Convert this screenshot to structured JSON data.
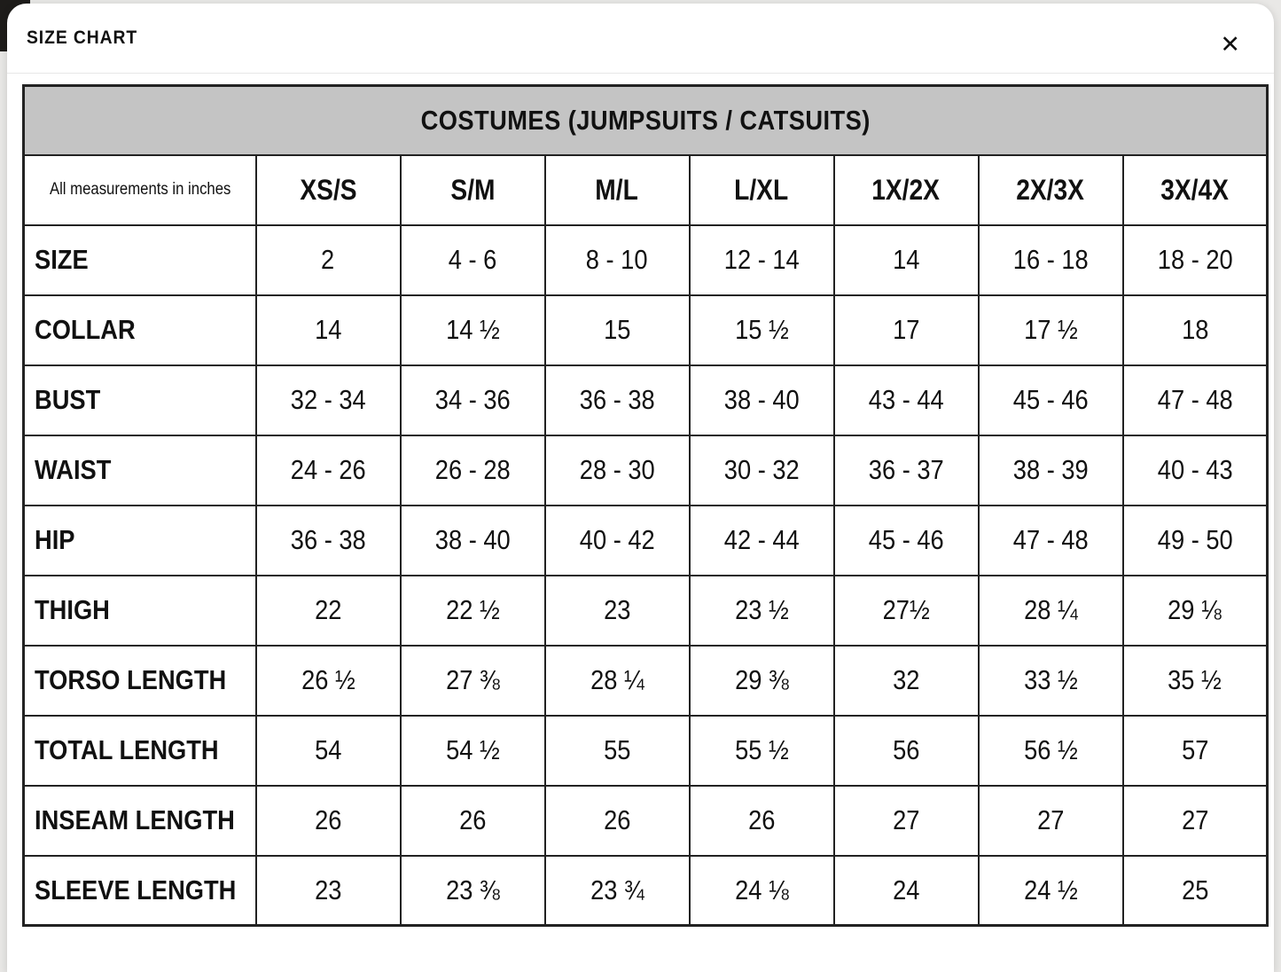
{
  "modal": {
    "title": "SIZE CHART",
    "close_icon": "✕"
  },
  "table": {
    "title": "COSTUMES (JUMPSUITS / CATSUITS)",
    "corner_note": "All measurements in inches",
    "columns": [
      "XS/S",
      "S/M",
      "M/L",
      "L/XL",
      "1X/2X",
      "2X/3X",
      "3X/4X"
    ],
    "rows": [
      {
        "label": "SIZE",
        "values": [
          "2",
          "4 - 6",
          "8 - 10",
          "12 - 14",
          "14",
          "16 - 18",
          "18 - 20"
        ]
      },
      {
        "label": "COLLAR",
        "values": [
          "14",
          "14 ½",
          "15",
          "15 ½",
          "17",
          "17 ½",
          "18"
        ]
      },
      {
        "label": "BUST",
        "values": [
          "32 - 34",
          "34 - 36",
          "36 - 38",
          "38 - 40",
          "43 - 44",
          "45 - 46",
          "47 - 48"
        ]
      },
      {
        "label": "WAIST",
        "values": [
          "24 - 26",
          "26 - 28",
          "28 - 30",
          "30 - 32",
          "36 - 37",
          "38 - 39",
          "40 - 43"
        ]
      },
      {
        "label": "HIP",
        "values": [
          "36 - 38",
          "38 - 40",
          "40 - 42",
          "42 - 44",
          "45 - 46",
          "47 - 48",
          "49 - 50"
        ]
      },
      {
        "label": "THIGH",
        "values": [
          "22",
          "22 ½",
          "23",
          "23 ½",
          "27½",
          "28 ¼",
          "29 ⅛"
        ]
      },
      {
        "label": "TORSO LENGTH",
        "values": [
          "26 ½",
          "27 ⅜",
          "28 ¼",
          "29 ⅜",
          "32",
          "33 ½",
          "35 ½"
        ]
      },
      {
        "label": "TOTAL LENGTH",
        "values": [
          "54",
          "54 ½",
          "55",
          "55 ½",
          "56",
          "56 ½",
          "57"
        ]
      },
      {
        "label": "INSEAM LENGTH",
        "values": [
          "26",
          "26",
          "26",
          "26",
          "27",
          "27",
          "27"
        ]
      },
      {
        "label": "SLEEVE LENGTH",
        "values": [
          "23",
          "23 ⅜",
          "23 ¾",
          "24 ⅛",
          "24",
          "24 ½",
          "25"
        ]
      }
    ]
  },
  "colors": {
    "header_bg": "#c4c4c4",
    "table_border": "#222222",
    "text": "#111111",
    "modal_bg": "#ffffff",
    "backdrop": "#e9e8e6"
  }
}
